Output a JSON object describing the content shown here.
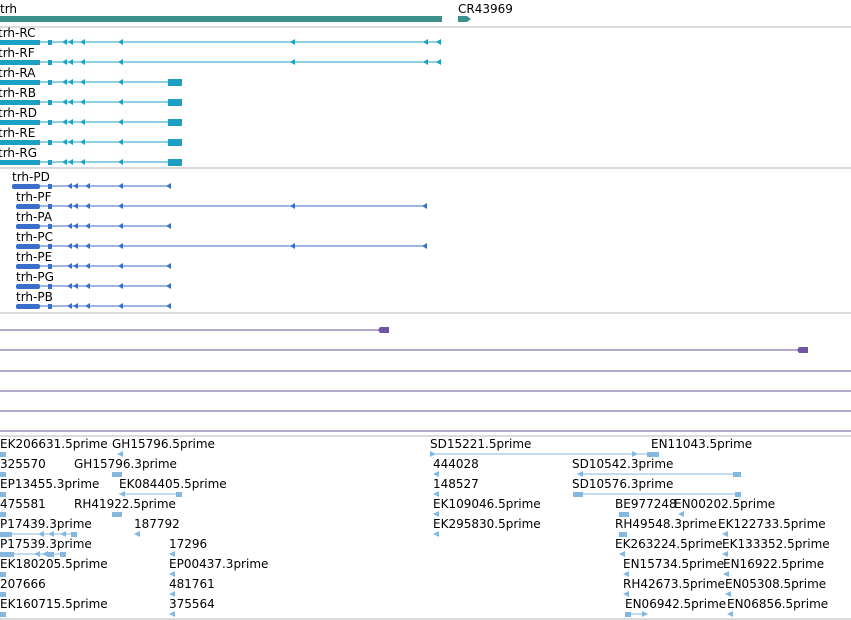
{
  "colors": {
    "gene": "#3c8f8a",
    "transcript": "#1ca0c4",
    "protein": "#3a6ecb",
    "other": "#6f56a3",
    "est": "#84b8e1",
    "divider": "#b9b9b9"
  },
  "tracks": {
    "genes": [
      {
        "label": "trh",
        "strand": "-"
      },
      {
        "label": "CR43969",
        "strand": "+"
      }
    ],
    "transcripts": [
      {
        "label": "trh-RC"
      },
      {
        "label": "trh-RF"
      },
      {
        "label": "trh-RA"
      },
      {
        "label": "trh-RB"
      },
      {
        "label": "trh-RD"
      },
      {
        "label": "trh-RE"
      },
      {
        "label": "trh-RG"
      }
    ],
    "proteins": [
      {
        "label": "trh-PD"
      },
      {
        "label": "trh-PF"
      },
      {
        "label": "trh-PA"
      },
      {
        "label": "trh-PC"
      },
      {
        "label": "trh-PE"
      },
      {
        "label": "trh-PG"
      },
      {
        "label": "trh-PB"
      }
    ],
    "ests": [
      {
        "label": "EK206631.5prime"
      },
      {
        "label": "GH15796.5prime"
      },
      {
        "label": "SD15221.5prime"
      },
      {
        "label": "EN11043.5prime"
      },
      {
        "label": "325570"
      },
      {
        "label": "GH15796.3prime"
      },
      {
        "label": "444028"
      },
      {
        "label": "SD10542.3prime"
      },
      {
        "label": "EP13455.3prime"
      },
      {
        "label": "EK084405.5prime"
      },
      {
        "label": "148527"
      },
      {
        "label": "SD10576.3prime"
      },
      {
        "label": "475581"
      },
      {
        "label": "RH41922.5prime"
      },
      {
        "label": "EK109046.5prime"
      },
      {
        "label": "BE977248"
      },
      {
        "label": "EN00202.5prime"
      },
      {
        "label": "P17439.3prime"
      },
      {
        "label": "187792"
      },
      {
        "label": "EK295830.5prime"
      },
      {
        "label": "RH49548.3prime"
      },
      {
        "label": "EK122733.5prime"
      },
      {
        "label": "P17539.3prime"
      },
      {
        "label": "17296"
      },
      {
        "label": "EK263224.5prime"
      },
      {
        "label": "EK133352.5prime"
      },
      {
        "label": "EK180205.5prime"
      },
      {
        "label": "EP00437.3prime"
      },
      {
        "label": "EN15734.5prime"
      },
      {
        "label": "EN16922.5prime"
      },
      {
        "label": "207666"
      },
      {
        "label": "481761"
      },
      {
        "label": "RH42673.5prime"
      },
      {
        "label": "EN05308.5prime"
      },
      {
        "label": "EK160715.5prime"
      },
      {
        "label": "375564"
      },
      {
        "label": "EN06942.5prime"
      },
      {
        "label": "EN06856.5prime"
      }
    ]
  }
}
